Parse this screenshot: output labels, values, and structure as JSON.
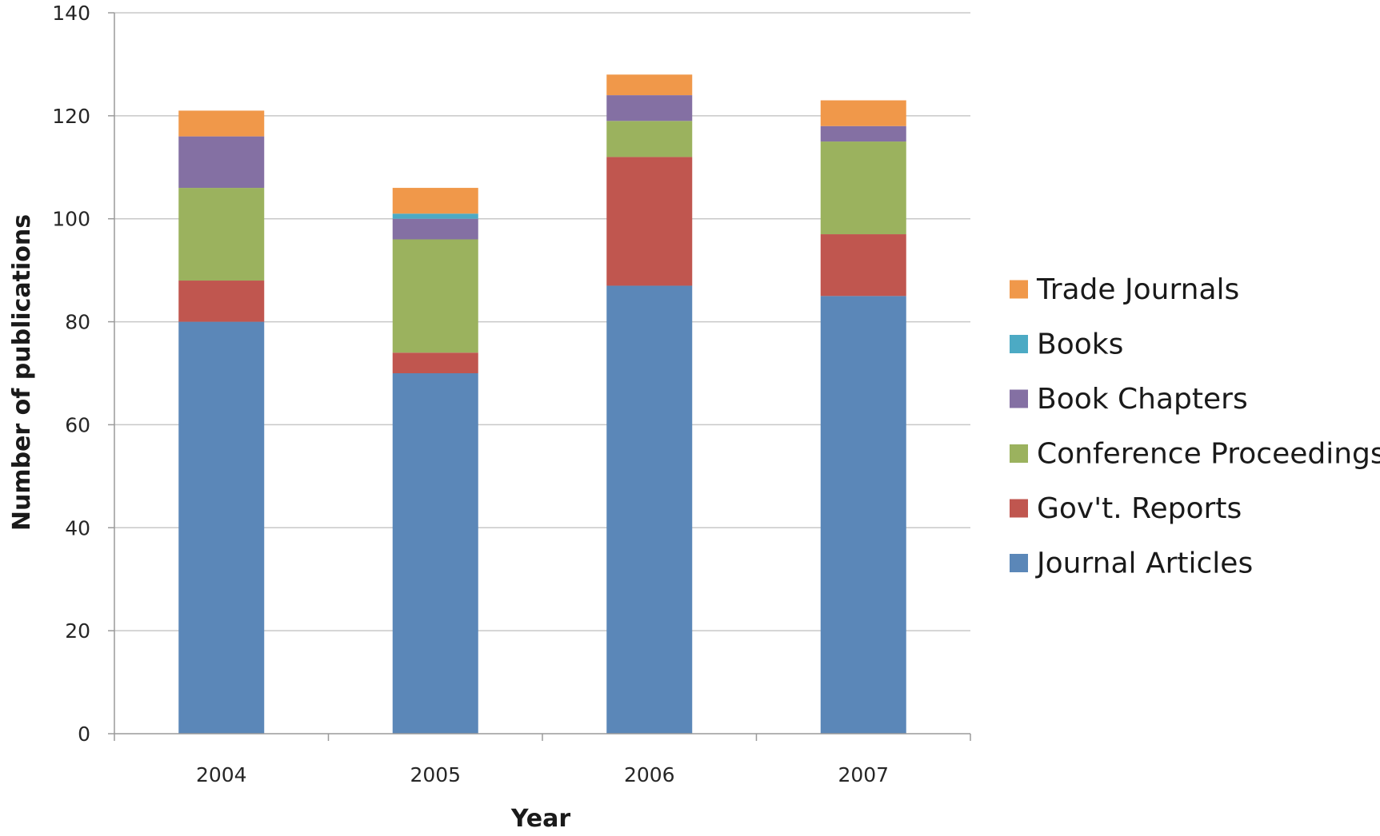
{
  "chart_data": {
    "type": "bar",
    "stacked": true,
    "categories": [
      "2004",
      "2005",
      "2006",
      "2007"
    ],
    "series": [
      {
        "name": "Journal Articles",
        "color": "#5b87b8",
        "values": [
          80,
          70,
          87,
          85
        ]
      },
      {
        "name": "Gov't. Reports",
        "color": "#c0564f",
        "values": [
          8,
          4,
          25,
          12
        ]
      },
      {
        "name": "Conference Proceedings",
        "color": "#9bb25e",
        "values": [
          18,
          22,
          7,
          18
        ]
      },
      {
        "name": "Book Chapters",
        "color": "#8470a3",
        "values": [
          10,
          4,
          5,
          3
        ]
      },
      {
        "name": "Books",
        "color": "#4caac4",
        "values": [
          0,
          1,
          0,
          0
        ]
      },
      {
        "name": "Trade Journals",
        "color": "#f0984a",
        "values": [
          5,
          5,
          4,
          5
        ]
      }
    ],
    "legend_order": [
      "Trade Journals",
      "Books",
      "Book Chapters",
      "Conference Proceedings",
      "Gov't. Reports",
      "Journal Articles"
    ],
    "title": "",
    "xlabel": "Year",
    "ylabel": "Number of publications",
    "ylim": [
      0,
      140
    ],
    "yticks": [
      "0",
      "20",
      "40",
      "60",
      "80",
      "100",
      "120",
      "140"
    ],
    "grid": true,
    "legend_position": "right"
  }
}
